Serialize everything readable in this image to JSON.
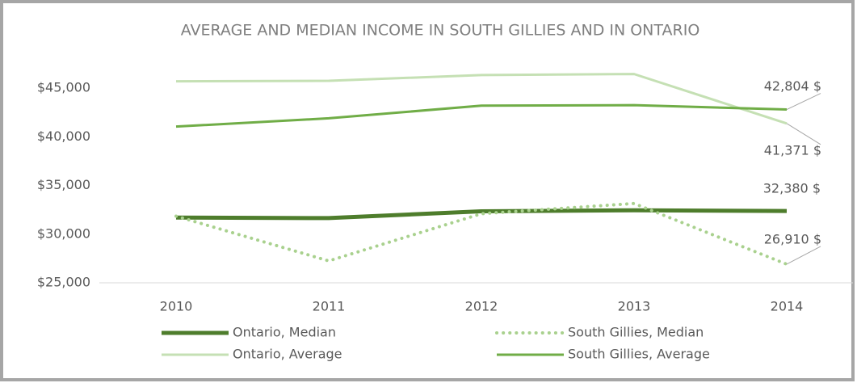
{
  "chart_data": {
    "type": "line",
    "title": "AVERAGE AND MEDIAN INCOME IN SOUTH GILLIES AND IN ONTARIO",
    "categories": [
      "2010",
      "2011",
      "2012",
      "2013",
      "2014"
    ],
    "ylim": [
      25000,
      47000
    ],
    "yticks": [
      {
        "value": 25000,
        "label": "$25,000"
      },
      {
        "value": 30000,
        "label": "$30,000"
      },
      {
        "value": 35000,
        "label": "$35,000"
      },
      {
        "value": 40000,
        "label": "$40,000"
      },
      {
        "value": 45000,
        "label": "$45,000"
      }
    ],
    "grid": false,
    "legend": "bottom",
    "series": [
      {
        "name": "Ontario, Median",
        "color": "#4e7d2c",
        "width": 5,
        "dashed": false,
        "values": [
          31700,
          31650,
          32350,
          32450,
          32380
        ],
        "value_labels": [
          null,
          null,
          null,
          null,
          "32,380 $"
        ]
      },
      {
        "name": "South Gillies, Median",
        "color": "#a9d18e",
        "width": 4,
        "dashed": true,
        "values": [
          31850,
          27250,
          32100,
          33150,
          26910
        ],
        "value_labels": [
          null,
          null,
          null,
          null,
          "26,910 $"
        ]
      },
      {
        "name": "Ontario, Average",
        "color": "#c5e0b4",
        "width": 3,
        "dashed": false,
        "values": [
          45700,
          45750,
          46350,
          46450,
          41371
        ],
        "value_labels": [
          null,
          null,
          null,
          null,
          "41,371 $"
        ]
      },
      {
        "name": "South Gillies, Average",
        "color": "#70ad47",
        "width": 3,
        "dashed": false,
        "values": [
          41050,
          41900,
          43200,
          43250,
          42804
        ],
        "value_labels": [
          null,
          null,
          null,
          null,
          "42,804 $"
        ]
      }
    ]
  }
}
